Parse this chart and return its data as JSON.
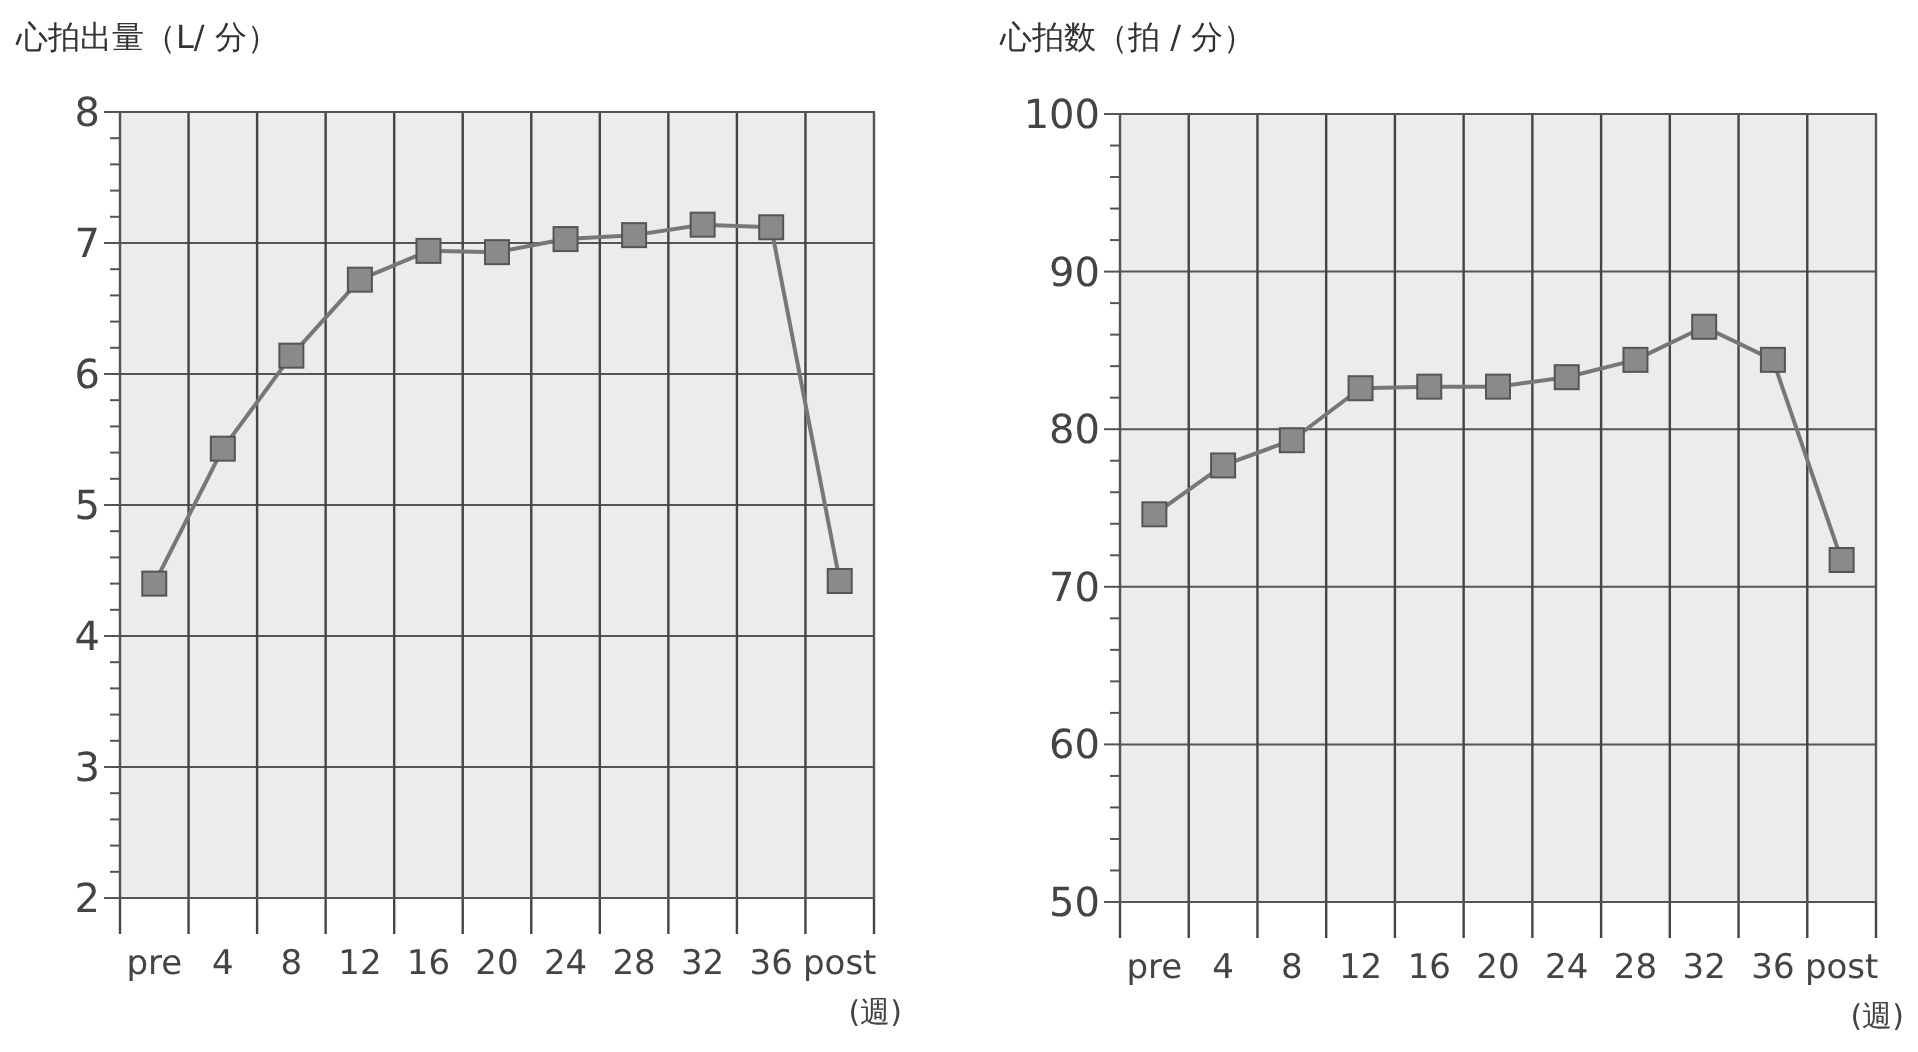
{
  "chart_data": [
    {
      "type": "line",
      "title": "心拍出量（L/ 分）",
      "xlabel": "(週)",
      "categories": [
        "pre",
        "4",
        "8",
        "12",
        "16",
        "20",
        "24",
        "28",
        "32",
        "36",
        "post"
      ],
      "series": [
        {
          "color": "#777777",
          "values": [
            4.4,
            5.43,
            6.14,
            6.72,
            6.94,
            6.93,
            7.03,
            7.06,
            7.14,
            7.12,
            4.42
          ]
        }
      ],
      "ylim": [
        2,
        8
      ],
      "yticks": [
        2,
        {
          "value": 2.2,
          "label": null
        },
        {
          "value": 2.4,
          "label": null
        },
        {
          "value": 2.6,
          "label": null
        },
        {
          "value": 2.8,
          "label": null
        },
        3,
        {
          "value": 3.2,
          "label": null
        },
        {
          "value": 3.4,
          "label": null
        },
        {
          "value": 3.6,
          "label": null
        },
        {
          "value": 3.8,
          "label": null
        },
        4,
        {
          "value": 4.2,
          "label": null
        },
        {
          "value": 4.4,
          "label": null
        },
        {
          "value": 4.6,
          "label": null
        },
        {
          "value": 4.8,
          "label": null
        },
        5,
        {
          "value": 5.2,
          "label": null
        },
        {
          "value": 5.4,
          "label": null
        },
        {
          "value": 5.6,
          "label": null
        },
        {
          "value": 5.8,
          "label": null
        },
        6,
        {
          "value": 6.2,
          "label": null
        },
        {
          "value": 6.4,
          "label": null
        },
        {
          "value": 6.6,
          "label": null
        },
        {
          "value": 6.8,
          "label": null
        },
        7,
        {
          "value": 7.2,
          "label": null
        },
        {
          "value": 7.4,
          "label": null
        },
        {
          "value": 7.6,
          "label": null
        },
        {
          "value": 7.8,
          "label": null
        },
        8
      ],
      "grid": true,
      "marker": "square",
      "line_style": "solid"
    },
    {
      "type": "line",
      "title": "心拍数（拍 / 分）",
      "xlabel": "(週)",
      "categories": [
        "pre",
        "4",
        "8",
        "12",
        "16",
        "20",
        "24",
        "28",
        "32",
        "36",
        "post"
      ],
      "series": [
        {
          "color": "#777777",
          "values": [
            74.6,
            77.7,
            79.3,
            82.6,
            82.7,
            82.7,
            83.3,
            84.4,
            86.5,
            84.4,
            71.7
          ]
        }
      ],
      "ylim": [
        50,
        100
      ],
      "yticks": [
        50,
        {
          "value": 52,
          "label": null
        },
        {
          "value": 54,
          "label": null
        },
        {
          "value": 56,
          "label": null
        },
        {
          "value": 58,
          "label": null
        },
        60,
        {
          "value": 62,
          "label": null
        },
        {
          "value": 64,
          "label": null
        },
        {
          "value": 66,
          "label": null
        },
        {
          "value": 68,
          "label": null
        },
        70,
        {
          "value": 72,
          "label": null
        },
        {
          "value": 74,
          "label": null
        },
        {
          "value": 76,
          "label": null
        },
        {
          "value": 78,
          "label": null
        },
        80,
        {
          "value": 82,
          "label": null
        },
        {
          "value": 84,
          "label": null
        },
        {
          "value": 86,
          "label": null
        },
        {
          "value": 88,
          "label": null
        },
        90,
        {
          "value": 92,
          "label": null
        },
        {
          "value": 94,
          "label": null
        },
        {
          "value": 96,
          "label": null
        },
        {
          "value": 98,
          "label": null
        },
        100
      ],
      "grid": true,
      "marker": "square",
      "line_style": "solid"
    }
  ]
}
